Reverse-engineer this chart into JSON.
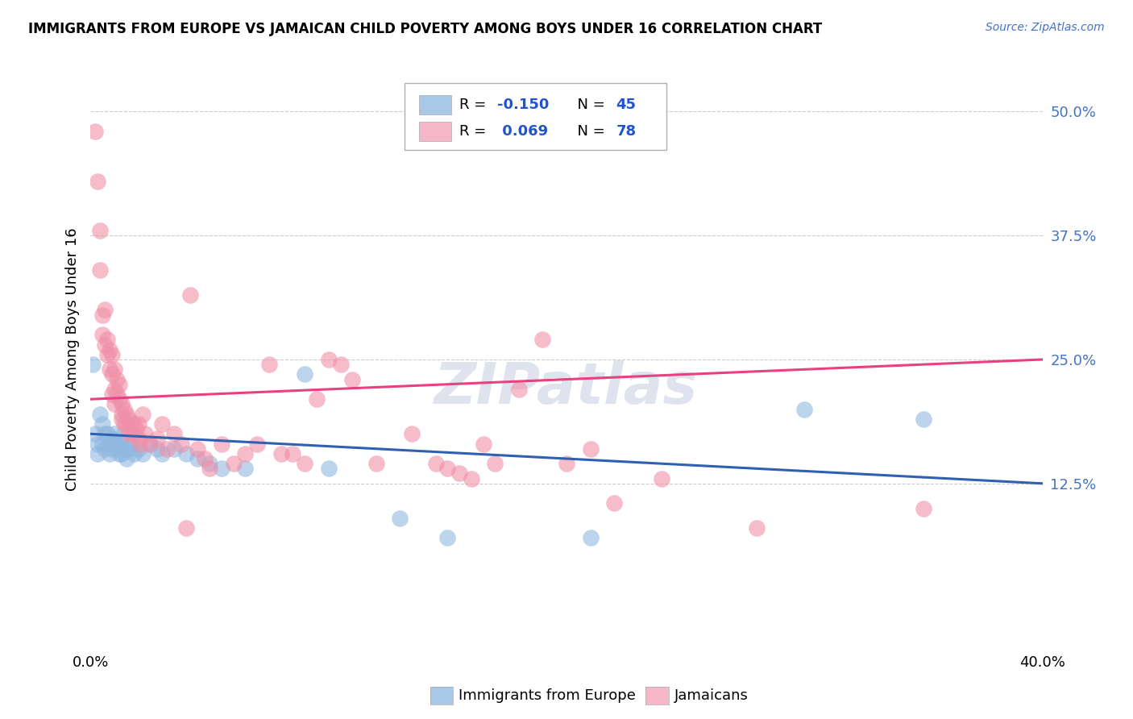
{
  "title": "IMMIGRANTS FROM EUROPE VS JAMAICAN CHILD POVERTY AMONG BOYS UNDER 16 CORRELATION CHART",
  "source": "Source: ZipAtlas.com",
  "ylabel": "Child Poverty Among Boys Under 16",
  "xlim": [
    0.0,
    0.4
  ],
  "ylim": [
    -0.04,
    0.54
  ],
  "yticks": [
    0.125,
    0.25,
    0.375,
    0.5
  ],
  "ytick_labels": [
    "12.5%",
    "25.0%",
    "37.5%",
    "50.0%"
  ],
  "blue_color": "#a8c8e8",
  "pink_color": "#f4b8c8",
  "blue_line_color": "#3060b0",
  "pink_line_color": "#e84080",
  "blue_scatter_color": "#90b8e0",
  "pink_scatter_color": "#f090a8",
  "watermark": "ZIPatlas",
  "background_color": "#ffffff",
  "grid_color": "#cccccc",
  "europe_points": [
    [
      0.001,
      0.245
    ],
    [
      0.002,
      0.175
    ],
    [
      0.003,
      0.165
    ],
    [
      0.003,
      0.155
    ],
    [
      0.004,
      0.195
    ],
    [
      0.005,
      0.185
    ],
    [
      0.005,
      0.165
    ],
    [
      0.006,
      0.175
    ],
    [
      0.006,
      0.16
    ],
    [
      0.007,
      0.175
    ],
    [
      0.008,
      0.165
    ],
    [
      0.008,
      0.155
    ],
    [
      0.009,
      0.17
    ],
    [
      0.009,
      0.16
    ],
    [
      0.01,
      0.175
    ],
    [
      0.01,
      0.165
    ],
    [
      0.011,
      0.165
    ],
    [
      0.012,
      0.16
    ],
    [
      0.012,
      0.155
    ],
    [
      0.013,
      0.165
    ],
    [
      0.013,
      0.155
    ],
    [
      0.014,
      0.175
    ],
    [
      0.015,
      0.16
    ],
    [
      0.015,
      0.15
    ],
    [
      0.016,
      0.16
    ],
    [
      0.017,
      0.165
    ],
    [
      0.018,
      0.155
    ],
    [
      0.02,
      0.16
    ],
    [
      0.022,
      0.155
    ],
    [
      0.025,
      0.165
    ],
    [
      0.028,
      0.16
    ],
    [
      0.03,
      0.155
    ],
    [
      0.035,
      0.16
    ],
    [
      0.04,
      0.155
    ],
    [
      0.045,
      0.15
    ],
    [
      0.05,
      0.145
    ],
    [
      0.055,
      0.14
    ],
    [
      0.065,
      0.14
    ],
    [
      0.09,
      0.235
    ],
    [
      0.1,
      0.14
    ],
    [
      0.13,
      0.09
    ],
    [
      0.15,
      0.07
    ],
    [
      0.21,
      0.07
    ],
    [
      0.3,
      0.2
    ],
    [
      0.35,
      0.19
    ]
  ],
  "jamaican_points": [
    [
      0.002,
      0.48
    ],
    [
      0.003,
      0.43
    ],
    [
      0.004,
      0.38
    ],
    [
      0.004,
      0.34
    ],
    [
      0.005,
      0.295
    ],
    [
      0.005,
      0.275
    ],
    [
      0.006,
      0.3
    ],
    [
      0.006,
      0.265
    ],
    [
      0.007,
      0.27
    ],
    [
      0.007,
      0.255
    ],
    [
      0.008,
      0.26
    ],
    [
      0.008,
      0.24
    ],
    [
      0.009,
      0.255
    ],
    [
      0.009,
      0.235
    ],
    [
      0.009,
      0.215
    ],
    [
      0.01,
      0.24
    ],
    [
      0.01,
      0.22
    ],
    [
      0.01,
      0.205
    ],
    [
      0.011,
      0.23
    ],
    [
      0.011,
      0.215
    ],
    [
      0.012,
      0.225
    ],
    [
      0.012,
      0.21
    ],
    [
      0.013,
      0.205
    ],
    [
      0.013,
      0.195
    ],
    [
      0.013,
      0.19
    ],
    [
      0.014,
      0.2
    ],
    [
      0.014,
      0.185
    ],
    [
      0.015,
      0.195
    ],
    [
      0.015,
      0.185
    ],
    [
      0.016,
      0.19
    ],
    [
      0.016,
      0.175
    ],
    [
      0.017,
      0.185
    ],
    [
      0.017,
      0.175
    ],
    [
      0.018,
      0.185
    ],
    [
      0.018,
      0.175
    ],
    [
      0.019,
      0.18
    ],
    [
      0.02,
      0.185
    ],
    [
      0.02,
      0.17
    ],
    [
      0.021,
      0.165
    ],
    [
      0.022,
      0.195
    ],
    [
      0.023,
      0.175
    ],
    [
      0.025,
      0.165
    ],
    [
      0.028,
      0.17
    ],
    [
      0.03,
      0.185
    ],
    [
      0.032,
      0.16
    ],
    [
      0.035,
      0.175
    ],
    [
      0.038,
      0.165
    ],
    [
      0.04,
      0.08
    ],
    [
      0.042,
      0.315
    ],
    [
      0.045,
      0.16
    ],
    [
      0.048,
      0.15
    ],
    [
      0.05,
      0.14
    ],
    [
      0.055,
      0.165
    ],
    [
      0.06,
      0.145
    ],
    [
      0.065,
      0.155
    ],
    [
      0.07,
      0.165
    ],
    [
      0.075,
      0.245
    ],
    [
      0.08,
      0.155
    ],
    [
      0.085,
      0.155
    ],
    [
      0.09,
      0.145
    ],
    [
      0.095,
      0.21
    ],
    [
      0.1,
      0.25
    ],
    [
      0.105,
      0.245
    ],
    [
      0.11,
      0.23
    ],
    [
      0.12,
      0.145
    ],
    [
      0.135,
      0.175
    ],
    [
      0.145,
      0.145
    ],
    [
      0.15,
      0.14
    ],
    [
      0.155,
      0.135
    ],
    [
      0.16,
      0.13
    ],
    [
      0.165,
      0.165
    ],
    [
      0.17,
      0.145
    ],
    [
      0.18,
      0.22
    ],
    [
      0.19,
      0.27
    ],
    [
      0.2,
      0.145
    ],
    [
      0.21,
      0.16
    ],
    [
      0.22,
      0.105
    ],
    [
      0.24,
      0.13
    ],
    [
      0.28,
      0.08
    ],
    [
      0.35,
      0.1
    ]
  ],
  "europe_trend": [
    0.0,
    0.4,
    0.175,
    0.125
  ],
  "jamaican_trend": [
    0.0,
    0.4,
    0.21,
    0.25
  ]
}
